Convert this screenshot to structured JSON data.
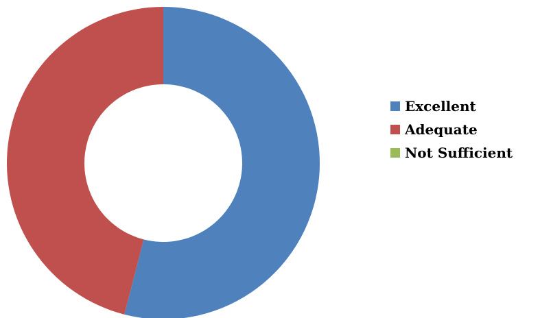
{
  "chart_data": {
    "type": "pie",
    "style": "donut",
    "categories": [
      "Excellent",
      "Adequate",
      "Not Sufficient"
    ],
    "values": [
      54,
      46,
      0
    ],
    "colors": [
      "#4F81BD",
      "#C0504D",
      "#9BBB59"
    ],
    "legend_position": "right"
  },
  "legend": {
    "items": [
      {
        "label": "Excellent",
        "color": "#4F81BD"
      },
      {
        "label": "Adequate",
        "color": "#C0504D"
      },
      {
        "label": "Not Sufficient",
        "color": "#9BBB59"
      }
    ]
  }
}
